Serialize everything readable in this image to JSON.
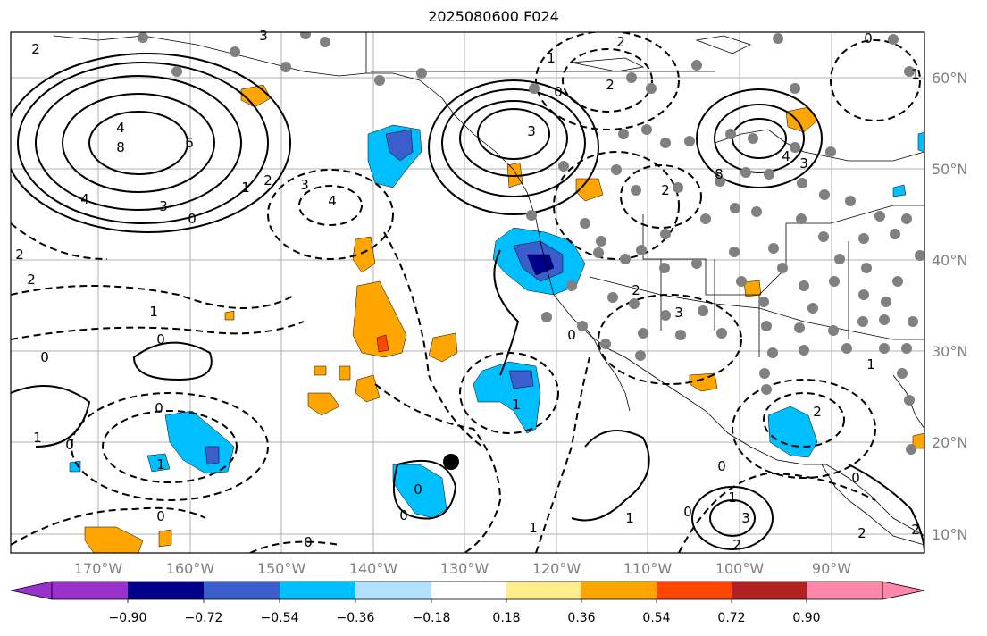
{
  "title": "2025080600 F024",
  "map": {
    "lat_labels": [
      "60°N",
      "50°N",
      "40°N",
      "30°N",
      "20°N",
      "10°N"
    ],
    "lon_labels": [
      "170°W",
      "160°W",
      "150°W",
      "140°W",
      "130°W",
      "120°W",
      "110°W",
      "100°W",
      "90°W"
    ],
    "contour_labels": [
      "2",
      "3",
      "6",
      "8",
      "4",
      "3",
      "0",
      "1",
      "2",
      "3",
      "4",
      "2",
      "2",
      "0",
      "1",
      "0",
      "1",
      "-0",
      "1",
      "0",
      "0",
      "1",
      "0",
      "0",
      "0",
      "1",
      "2",
      "3",
      "2",
      "0",
      "2",
      "4",
      "3",
      "2",
      "0",
      "-1",
      "1",
      "2",
      "3",
      "2",
      "1",
      "1",
      "0",
      "-1",
      "0",
      "-2",
      "2",
      "2"
    ],
    "colors": {
      "land_outline": "#000000",
      "grid": "#b0b0b0",
      "station_dots": "#808080"
    }
  },
  "colorbar": {
    "tick_labels": [
      "−0.90",
      "−0.72",
      "−0.54",
      "−0.36",
      "−0.18",
      "0.18",
      "0.36",
      "0.54",
      "0.72",
      "0.90"
    ],
    "colors": [
      "#9932cc",
      "#00008b",
      "#3a5fcd",
      "#00bfff",
      "#b0e2ff",
      "#ffffff",
      "#ffec8b",
      "#ffa500",
      "#ff4500",
      "#b22222",
      "#ff88aa"
    ]
  }
}
